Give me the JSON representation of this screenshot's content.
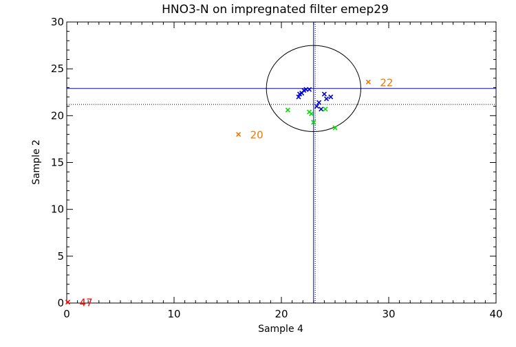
{
  "chart_data": {
    "type": "scatter",
    "title": "HNO3-N on impregnated filter emep29",
    "xlabel": "Sample 4",
    "ylabel": "Sample 2",
    "xlim": [
      0,
      40
    ],
    "ylim": [
      0,
      30
    ],
    "xticks": [
      0,
      10,
      20,
      30,
      40
    ],
    "yticks": [
      0,
      5,
      10,
      15,
      20,
      25,
      30
    ],
    "grid": false,
    "reference_lines": {
      "vertical_solid_x": 23.0,
      "vertical_dotted_x": 23.15,
      "horizontal_solid_y": 22.9,
      "horizontal_dotted_y": 21.2
    },
    "ellipse": {
      "center_x": 23.0,
      "center_y": 22.9,
      "radius_x": 4.4,
      "radius_y": 4.6
    },
    "series": [
      {
        "color": "#0000cc",
        "points": [
          [
            21.6,
            22.0
          ],
          [
            21.7,
            22.3
          ],
          [
            21.9,
            22.4
          ],
          [
            22.1,
            22.7
          ],
          [
            22.3,
            22.8
          ],
          [
            22.6,
            22.8
          ],
          [
            23.3,
            21.0
          ],
          [
            23.5,
            21.4
          ],
          [
            23.7,
            20.7
          ],
          [
            24.0,
            22.3
          ],
          [
            24.2,
            21.8
          ],
          [
            24.6,
            22.0
          ]
        ]
      },
      {
        "color": "#00dd00",
        "points": [
          [
            20.6,
            20.6
          ],
          [
            22.6,
            20.4
          ],
          [
            22.8,
            20.2
          ],
          [
            23.0,
            19.3
          ],
          [
            24.1,
            20.7
          ],
          [
            25.0,
            18.7
          ]
        ]
      },
      {
        "color": "#ee7700",
        "points": [
          [
            16.0,
            18.0
          ],
          [
            28.1,
            23.6
          ]
        ],
        "labels": [
          "20",
          "22"
        ]
      },
      {
        "color": "#ff0000",
        "points": [
          [
            0.1,
            0.1
          ]
        ],
        "labels": [
          "47"
        ]
      }
    ]
  }
}
